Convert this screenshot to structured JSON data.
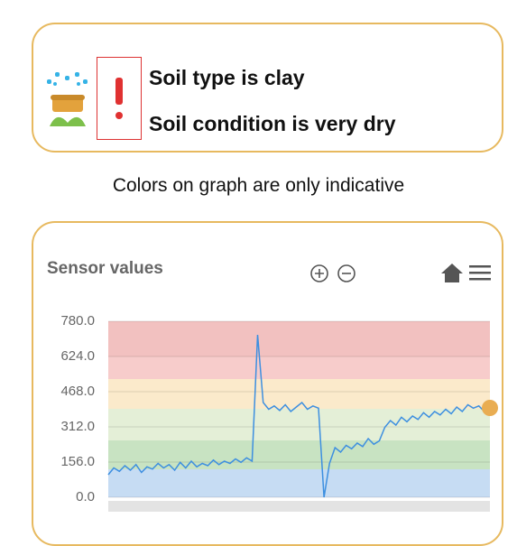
{
  "status": {
    "soil_type": "Soil type is clay",
    "soil_condition": "Soil condition is very dry"
  },
  "note": "Colors on graph are only indicative",
  "chart_data": {
    "type": "line",
    "title": "Sensor values",
    "ylim": [
      0,
      780
    ],
    "yticks": [
      {
        "value": 0,
        "label": "0.0"
      },
      {
        "value": 156,
        "label": "156.0"
      },
      {
        "value": 312,
        "label": "312.0"
      },
      {
        "value": 468,
        "label": "468.0"
      },
      {
        "value": 624,
        "label": "624.0"
      },
      {
        "value": 780,
        "label": "780.0"
      }
    ],
    "bands": [
      {
        "from": 0,
        "to": 124,
        "color": "#c6dcf3"
      },
      {
        "from": 124,
        "to": 252,
        "color": "#c8e3c2"
      },
      {
        "from": 252,
        "to": 392,
        "color": "#e4efd7"
      },
      {
        "from": 392,
        "to": 524,
        "color": "#fbeacb"
      },
      {
        "from": 524,
        "to": 624,
        "color": "#f7cccb"
      },
      {
        "from": 624,
        "to": 780,
        "color": "#f2c1c0"
      }
    ],
    "series": [
      {
        "color": "#3d8fe0",
        "values": [
          100,
          130,
          115,
          140,
          120,
          145,
          110,
          135,
          125,
          150,
          130,
          145,
          120,
          155,
          130,
          160,
          135,
          150,
          140,
          165,
          145,
          160,
          150,
          170,
          155,
          175,
          160,
          720,
          420,
          390,
          405,
          385,
          410,
          380,
          400,
          420,
          390,
          405,
          395,
          0,
          150,
          220,
          200,
          230,
          215,
          240,
          225,
          260,
          235,
          250,
          310,
          340,
          320,
          355,
          335,
          360,
          345,
          375,
          355,
          380,
          365,
          390,
          370,
          400,
          380,
          410,
          395,
          405,
          380,
          400
        ]
      }
    ]
  }
}
